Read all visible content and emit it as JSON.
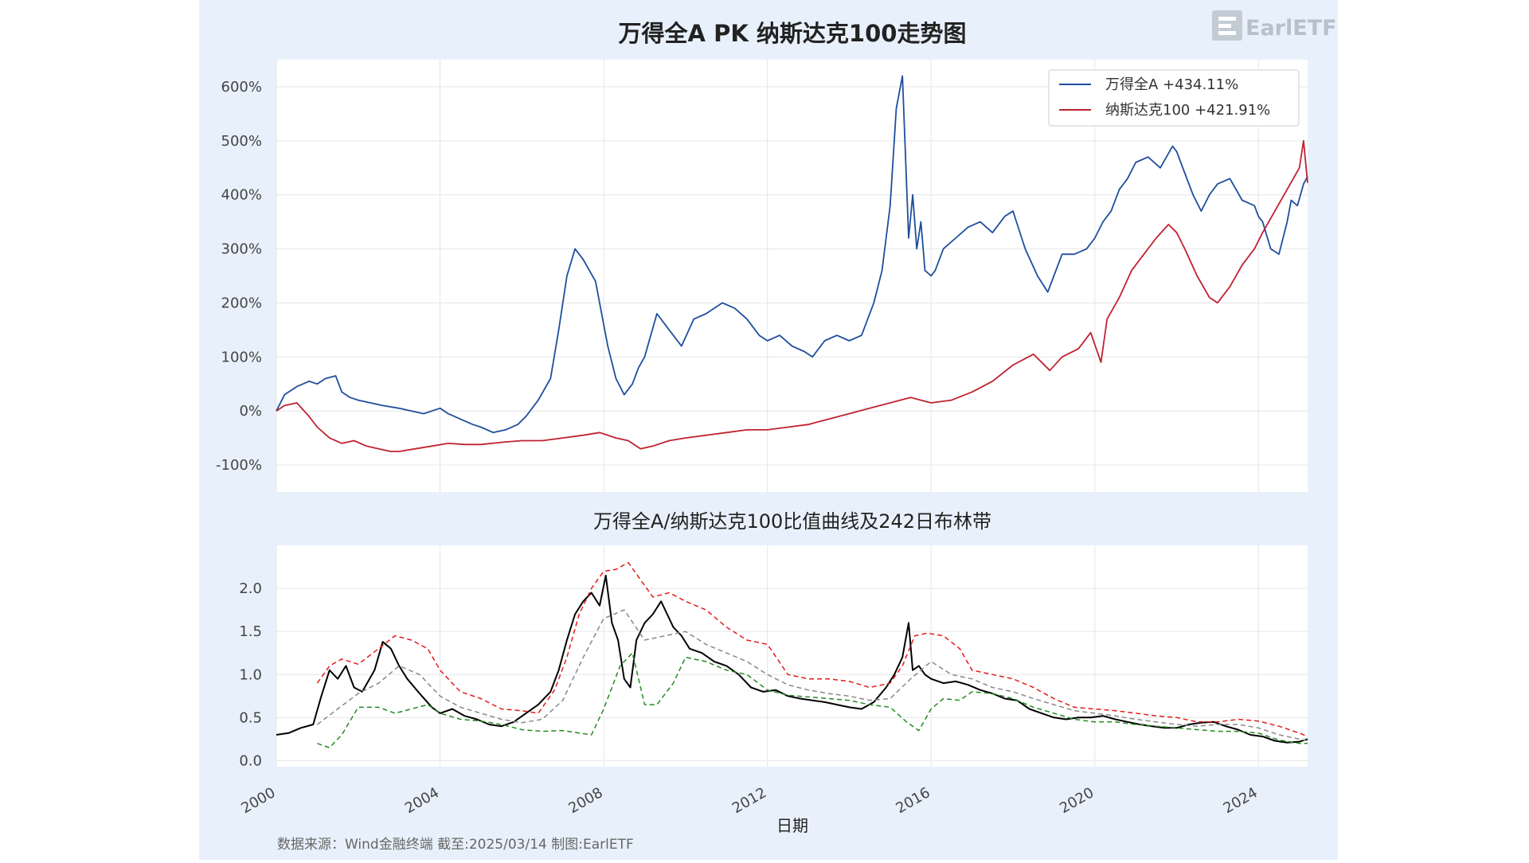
{
  "title": "万得全A PK 纳斯达克100走势图",
  "logo_text": "EarlETF",
  "footer": "数据来源：Wind金融终端 截至:2025/03/14 制图:EarlETF",
  "colors": {
    "panel_bg": "#e8f1fb",
    "plot_bg": "#ffffff",
    "wind": "#1f4e9e",
    "nasdaq": "#c0222f",
    "ratio": "#000000",
    "upper": "#e41a1c",
    "mid": "#888888",
    "lower": "#228b22"
  },
  "chart_data": [
    {
      "type": "line",
      "title": "",
      "xlim": [
        2000.0,
        2025.2
      ],
      "ylim": [
        -150,
        650
      ],
      "y_ticks": [
        -100,
        0,
        100,
        200,
        300,
        400,
        500,
        600
      ],
      "y_tick_labels": [
        "-100%",
        "0%",
        "100%",
        "200%",
        "300%",
        "400%",
        "500%",
        "600%"
      ],
      "x_ticks": [
        2000,
        2004,
        2008,
        2012,
        2016,
        2020,
        2024
      ],
      "grid": true,
      "legend": "top-right",
      "series": [
        {
          "name": "万得全A  +434.11%",
          "color_key": "wind",
          "x": [
            2000.0,
            2000.2,
            2000.5,
            2000.8,
            2001.0,
            2001.2,
            2001.45,
            2001.6,
            2001.8,
            2002.0,
            2002.3,
            2002.6,
            2003.0,
            2003.3,
            2003.6,
            2004.0,
            2004.2,
            2004.5,
            2004.8,
            2005.0,
            2005.3,
            2005.6,
            2005.9,
            2006.1,
            2006.4,
            2006.7,
            2006.9,
            2007.1,
            2007.3,
            2007.5,
            2007.8,
            2007.95,
            2008.1,
            2008.3,
            2008.5,
            2008.7,
            2008.85,
            2009.0,
            2009.3,
            2009.6,
            2009.9,
            2010.2,
            2010.5,
            2010.9,
            2011.2,
            2011.5,
            2011.8,
            2012.0,
            2012.3,
            2012.6,
            2012.9,
            2013.1,
            2013.4,
            2013.7,
            2014.0,
            2014.3,
            2014.6,
            2014.8,
            2015.0,
            2015.15,
            2015.3,
            2015.45,
            2015.55,
            2015.65,
            2015.75,
            2015.85,
            2016.0,
            2016.1,
            2016.3,
            2016.6,
            2016.9,
            2017.2,
            2017.5,
            2017.8,
            2018.0,
            2018.3,
            2018.6,
            2018.85,
            2019.0,
            2019.2,
            2019.5,
            2019.8,
            2020.0,
            2020.2,
            2020.4,
            2020.6,
            2020.8,
            2021.0,
            2021.3,
            2021.6,
            2021.9,
            2022.0,
            2022.2,
            2022.4,
            2022.6,
            2022.8,
            2023.0,
            2023.3,
            2023.6,
            2023.9,
            2024.0,
            2024.1,
            2024.3,
            2024.5,
            2024.7,
            2024.8,
            2024.95,
            2025.1,
            2025.2
          ],
          "y": [
            0,
            30,
            45,
            55,
            50,
            60,
            65,
            35,
            25,
            20,
            15,
            10,
            5,
            0,
            -5,
            5,
            -5,
            -15,
            -25,
            -30,
            -40,
            -35,
            -25,
            -10,
            20,
            60,
            150,
            250,
            300,
            280,
            240,
            180,
            120,
            60,
            30,
            50,
            80,
            100,
            180,
            150,
            120,
            170,
            180,
            200,
            190,
            170,
            140,
            130,
            140,
            120,
            110,
            100,
            130,
            140,
            130,
            140,
            200,
            260,
            380,
            560,
            620,
            320,
            400,
            300,
            350,
            260,
            250,
            260,
            300,
            320,
            340,
            350,
            330,
            360,
            370,
            300,
            250,
            220,
            250,
            290,
            290,
            300,
            320,
            350,
            370,
            410,
            430,
            460,
            470,
            450,
            490,
            480,
            440,
            400,
            370,
            400,
            420,
            430,
            390,
            380,
            360,
            350,
            300,
            290,
            350,
            390,
            380,
            420,
            434
          ]
        },
        {
          "name": "纳斯达克100  +421.91%",
          "color_key": "nasdaq",
          "x": [
            2000.0,
            2000.2,
            2000.5,
            2000.8,
            2001.0,
            2001.3,
            2001.6,
            2001.9,
            2002.2,
            2002.5,
            2002.8,
            2003.0,
            2003.4,
            2003.8,
            2004.2,
            2004.6,
            2005.0,
            2005.5,
            2006.0,
            2006.5,
            2007.0,
            2007.5,
            2007.9,
            2008.3,
            2008.6,
            2008.9,
            2009.2,
            2009.6,
            2010.0,
            2010.5,
            2011.0,
            2011.5,
            2012.0,
            2012.5,
            2013.0,
            2013.5,
            2014.0,
            2014.5,
            2015.0,
            2015.5,
            2016.0,
            2016.5,
            2017.0,
            2017.5,
            2018.0,
            2018.5,
            2018.9,
            2019.2,
            2019.6,
            2019.9,
            2020.15,
            2020.3,
            2020.6,
            2020.9,
            2021.2,
            2021.5,
            2021.8,
            2022.0,
            2022.2,
            2022.5,
            2022.8,
            2023.0,
            2023.3,
            2023.6,
            2023.9,
            2024.1,
            2024.4,
            2024.7,
            2025.0,
            2025.1,
            2025.2
          ],
          "y": [
            0,
            10,
            15,
            -10,
            -30,
            -50,
            -60,
            -55,
            -65,
            -70,
            -75,
            -75,
            -70,
            -65,
            -60,
            -62,
            -62,
            -58,
            -55,
            -55,
            -50,
            -45,
            -40,
            -50,
            -55,
            -70,
            -65,
            -55,
            -50,
            -45,
            -40,
            -35,
            -35,
            -30,
            -25,
            -15,
            -5,
            5,
            15,
            25,
            15,
            20,
            35,
            55,
            85,
            105,
            75,
            100,
            115,
            145,
            90,
            170,
            210,
            260,
            290,
            320,
            345,
            330,
            300,
            250,
            210,
            200,
            230,
            270,
            300,
            330,
            370,
            410,
            450,
            500,
            422
          ]
        }
      ]
    },
    {
      "type": "line",
      "title": "万得全A/纳斯达克100比值曲线及242日布林带",
      "xlabel": "日期",
      "xlim": [
        2000.0,
        2025.2
      ],
      "ylim": [
        -0.07,
        2.5
      ],
      "y_ticks": [
        0.0,
        0.5,
        1.0,
        1.5,
        2.0
      ],
      "y_tick_labels": [
        "0.0",
        "0.5",
        "1.0",
        "1.5",
        "2.0"
      ],
      "x_ticks": [
        2000,
        2004,
        2008,
        2012,
        2016,
        2020,
        2024
      ],
      "x_tick_labels": [
        "2000",
        "2004",
        "2008",
        "2012",
        "2016",
        "2020",
        "2024"
      ],
      "grid": true,
      "series": [
        {
          "color_key": "ratio",
          "x": [
            2000.0,
            2000.3,
            2000.6,
            2000.9,
            2001.1,
            2001.3,
            2001.5,
            2001.7,
            2001.9,
            2002.1,
            2002.4,
            2002.6,
            2002.8,
            2003.0,
            2003.2,
            2003.5,
            2003.8,
            2004.0,
            2004.3,
            2004.6,
            2004.9,
            2005.2,
            2005.5,
            2005.8,
            2006.1,
            2006.4,
            2006.7,
            2006.9,
            2007.1,
            2007.3,
            2007.5,
            2007.7,
            2007.9,
            2008.05,
            2008.2,
            2008.35,
            2008.5,
            2008.65,
            2008.8,
            2009.0,
            2009.2,
            2009.4,
            2009.55,
            2009.7,
            2009.9,
            2010.1,
            2010.4,
            2010.7,
            2011.0,
            2011.3,
            2011.6,
            2011.9,
            2012.2,
            2012.5,
            2012.8,
            2013.1,
            2013.4,
            2013.7,
            2014.0,
            2014.3,
            2014.6,
            2014.9,
            2015.1,
            2015.3,
            2015.45,
            2015.55,
            2015.7,
            2015.85,
            2016.0,
            2016.3,
            2016.6,
            2016.9,
            2017.2,
            2017.5,
            2017.8,
            2018.1,
            2018.4,
            2018.7,
            2019.0,
            2019.3,
            2019.6,
            2019.9,
            2020.2,
            2020.5,
            2020.8,
            2021.1,
            2021.4,
            2021.7,
            2022.0,
            2022.3,
            2022.6,
            2022.9,
            2023.2,
            2023.5,
            2023.8,
            2024.1,
            2024.4,
            2024.7,
            2025.0,
            2025.2
          ],
          "y": [
            0.3,
            0.32,
            0.38,
            0.42,
            0.75,
            1.05,
            0.95,
            1.1,
            0.85,
            0.8,
            1.05,
            1.38,
            1.3,
            1.1,
            0.95,
            0.78,
            0.62,
            0.55,
            0.6,
            0.52,
            0.48,
            0.42,
            0.4,
            0.45,
            0.55,
            0.65,
            0.8,
            1.05,
            1.4,
            1.7,
            1.85,
            1.95,
            1.8,
            2.15,
            1.6,
            1.4,
            0.95,
            0.85,
            1.4,
            1.6,
            1.7,
            1.85,
            1.7,
            1.55,
            1.45,
            1.3,
            1.25,
            1.15,
            1.1,
            1.0,
            0.85,
            0.8,
            0.82,
            0.75,
            0.72,
            0.7,
            0.68,
            0.65,
            0.62,
            0.6,
            0.68,
            0.85,
            1.0,
            1.2,
            1.6,
            1.05,
            1.1,
            1.0,
            0.95,
            0.9,
            0.92,
            0.88,
            0.82,
            0.78,
            0.72,
            0.7,
            0.6,
            0.55,
            0.5,
            0.48,
            0.5,
            0.5,
            0.52,
            0.48,
            0.45,
            0.42,
            0.4,
            0.38,
            0.38,
            0.42,
            0.44,
            0.45,
            0.4,
            0.36,
            0.3,
            0.28,
            0.23,
            0.21,
            0.22,
            0.25
          ]
        },
        {
          "color_key": "upper",
          "x": [
            2001.0,
            2001.3,
            2001.6,
            2002.0,
            2002.5,
            2002.9,
            2003.3,
            2003.7,
            2004.0,
            2004.5,
            2005.0,
            2005.5,
            2006.0,
            2006.4,
            2006.8,
            2007.1,
            2007.4,
            2007.7,
            2008.0,
            2008.3,
            2008.6,
            2008.9,
            2009.2,
            2009.6,
            2010.0,
            2010.5,
            2011.0,
            2011.5,
            2012.0,
            2012.5,
            2013.0,
            2013.5,
            2014.0,
            2014.5,
            2015.0,
            2015.3,
            2015.6,
            2015.9,
            2016.3,
            2016.7,
            2017.0,
            2017.5,
            2018.0,
            2018.5,
            2019.0,
            2019.5,
            2020.0,
            2020.5,
            2021.0,
            2021.5,
            2022.0,
            2022.5,
            2023.0,
            2023.5,
            2024.0,
            2024.5,
            2025.0,
            2025.2
          ],
          "y": [
            0.9,
            1.1,
            1.18,
            1.12,
            1.3,
            1.45,
            1.4,
            1.3,
            1.05,
            0.8,
            0.72,
            0.6,
            0.58,
            0.55,
            0.82,
            1.2,
            1.7,
            2.0,
            2.2,
            2.22,
            2.3,
            2.1,
            1.9,
            1.95,
            1.85,
            1.75,
            1.55,
            1.4,
            1.35,
            1.0,
            0.95,
            0.95,
            0.92,
            0.85,
            0.9,
            1.1,
            1.45,
            1.48,
            1.45,
            1.3,
            1.05,
            1.0,
            0.95,
            0.85,
            0.72,
            0.62,
            0.6,
            0.58,
            0.55,
            0.52,
            0.5,
            0.45,
            0.45,
            0.48,
            0.46,
            0.4,
            0.32,
            0.28
          ]
        },
        {
          "color_key": "mid",
          "x": [
            2001.0,
            2001.5,
            2002.0,
            2002.5,
            2003.0,
            2003.5,
            2004.0,
            2004.5,
            2005.0,
            2005.5,
            2006.0,
            2006.5,
            2007.0,
            2007.5,
            2008.0,
            2008.5,
            2009.0,
            2009.5,
            2010.0,
            2010.5,
            2011.0,
            2011.5,
            2012.0,
            2012.5,
            2013.0,
            2013.5,
            2014.0,
            2014.5,
            2015.0,
            2015.5,
            2016.0,
            2016.5,
            2017.0,
            2017.5,
            2018.0,
            2018.5,
            2019.0,
            2019.5,
            2020.0,
            2020.5,
            2021.0,
            2021.5,
            2022.0,
            2022.5,
            2023.0,
            2023.5,
            2024.0,
            2024.5,
            2025.0,
            2025.2
          ],
          "y": [
            0.42,
            0.6,
            0.78,
            0.9,
            1.1,
            1.0,
            0.75,
            0.62,
            0.55,
            0.48,
            0.44,
            0.48,
            0.7,
            1.2,
            1.65,
            1.75,
            1.4,
            1.45,
            1.5,
            1.35,
            1.25,
            1.15,
            1.0,
            0.88,
            0.82,
            0.78,
            0.75,
            0.7,
            0.72,
            0.95,
            1.15,
            1.0,
            0.95,
            0.85,
            0.8,
            0.72,
            0.65,
            0.58,
            0.55,
            0.52,
            0.48,
            0.45,
            0.42,
            0.4,
            0.42,
            0.42,
            0.38,
            0.3,
            0.25,
            0.23
          ]
        },
        {
          "color_key": "lower",
          "x": [
            2001.0,
            2001.3,
            2001.6,
            2002.0,
            2002.5,
            2002.9,
            2003.3,
            2003.7,
            2004.0,
            2004.5,
            2005.0,
            2005.5,
            2006.0,
            2006.5,
            2007.0,
            2007.4,
            2007.7,
            2008.0,
            2008.4,
            2008.7,
            2009.0,
            2009.3,
            2009.7,
            2010.0,
            2010.5,
            2011.0,
            2011.5,
            2012.0,
            2012.5,
            2013.0,
            2013.5,
            2014.0,
            2014.5,
            2015.0,
            2015.4,
            2015.7,
            2016.0,
            2016.3,
            2016.7,
            2017.0,
            2017.5,
            2018.0,
            2018.5,
            2019.0,
            2019.5,
            2020.0,
            2020.5,
            2021.0,
            2021.5,
            2022.0,
            2022.5,
            2023.0,
            2023.5,
            2024.0,
            2024.5,
            2025.0,
            2025.2
          ],
          "y": [
            0.2,
            0.15,
            0.3,
            0.62,
            0.62,
            0.55,
            0.6,
            0.65,
            0.55,
            0.48,
            0.46,
            0.42,
            0.36,
            0.34,
            0.35,
            0.32,
            0.3,
            0.6,
            1.1,
            1.25,
            0.65,
            0.65,
            0.9,
            1.2,
            1.15,
            1.05,
            1.0,
            0.82,
            0.76,
            0.74,
            0.72,
            0.7,
            0.65,
            0.62,
            0.45,
            0.35,
            0.6,
            0.72,
            0.7,
            0.8,
            0.78,
            0.72,
            0.62,
            0.55,
            0.48,
            0.45,
            0.45,
            0.42,
            0.4,
            0.38,
            0.36,
            0.34,
            0.34,
            0.32,
            0.24,
            0.2,
            0.2
          ]
        }
      ]
    }
  ]
}
